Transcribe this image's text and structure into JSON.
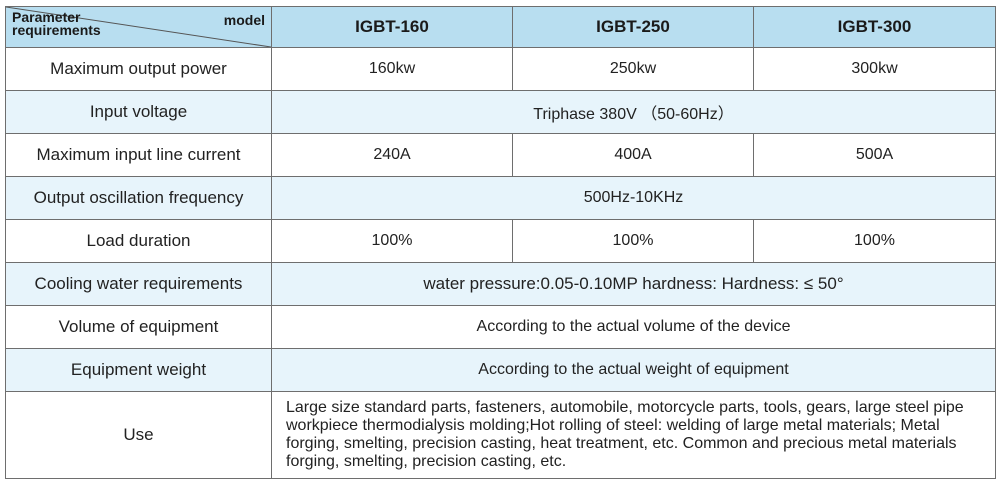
{
  "header": {
    "corner_param": "Parameter requirements",
    "corner_param_line1": "Parameter",
    "corner_param_line2": "requirements",
    "corner_model": "model",
    "models": [
      "IGBT-160",
      "IGBT-250",
      "IGBT-300"
    ]
  },
  "rows": {
    "max_output_power": {
      "label": "Maximum output power",
      "values": [
        "160kw",
        "250kw",
        "300kw"
      ]
    },
    "input_voltage": {
      "label": "Input voltage",
      "value": "Triphase 380V （50-60Hz）"
    },
    "max_input_current": {
      "label": "Maximum input line current",
      "values": [
        "240A",
        "400A",
        "500A"
      ]
    },
    "oscillation_frequency": {
      "label": "Output oscillation frequency",
      "value": "500Hz-10KHz"
    },
    "load_duration": {
      "label": "Load duration",
      "values": [
        "100%",
        "100%",
        "100%"
      ]
    },
    "cooling_water": {
      "label": "Cooling water requirements",
      "value": "water pressure:0.05-0.10MP hardness:  Hardness: ≤ 50°"
    },
    "volume": {
      "label": "Volume of equipment",
      "value": "According to the actual volume of the device"
    },
    "weight": {
      "label": "Equipment weight",
      "value": "According to the actual weight of equipment"
    },
    "use": {
      "label": "Use",
      "value": "Large size standard parts, fasteners, automobile, motorcycle parts, tools, gears, large steel pipe workpiece thermodialysis molding;Hot rolling of steel: welding of large metal materials; Metal forging, smelting, precision casting, heat treatment, etc. Common and precious metal materials forging, smelting, precision casting, etc."
    }
  },
  "colors": {
    "header_bg": "#b8def0",
    "alt_row_bg": "#e7f4fb",
    "border": "#6e6e6e"
  }
}
